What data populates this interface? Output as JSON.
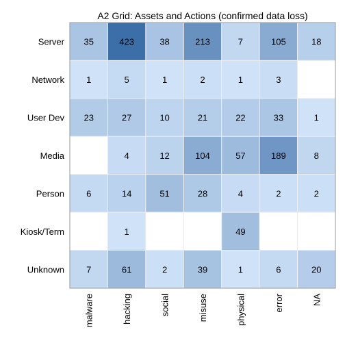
{
  "chart_data": {
    "type": "heatmap",
    "title": "A2 Grid: Assets and Actions (confirmed data loss)",
    "rows": [
      "Server",
      "Network",
      "User Dev",
      "Media",
      "Person",
      "Kiosk/Term",
      "Unknown"
    ],
    "columns": [
      "malware",
      "hacking",
      "social",
      "misuse",
      "physical",
      "error",
      "NA"
    ],
    "values": [
      [
        35,
        423,
        38,
        213,
        7,
        105,
        18
      ],
      [
        1,
        5,
        1,
        2,
        1,
        3,
        null
      ],
      [
        23,
        27,
        10,
        21,
        22,
        33,
        1
      ],
      [
        null,
        4,
        12,
        104,
        57,
        189,
        8
      ],
      [
        6,
        14,
        51,
        28,
        4,
        2,
        2
      ],
      [
        null,
        1,
        null,
        null,
        49,
        null,
        null
      ],
      [
        7,
        61,
        2,
        39,
        1,
        6,
        20
      ]
    ],
    "color_scale": {
      "low": "#d6e8fc",
      "high": "#3c6ea8"
    },
    "empty_color": "#ffffff",
    "grid": true
  }
}
